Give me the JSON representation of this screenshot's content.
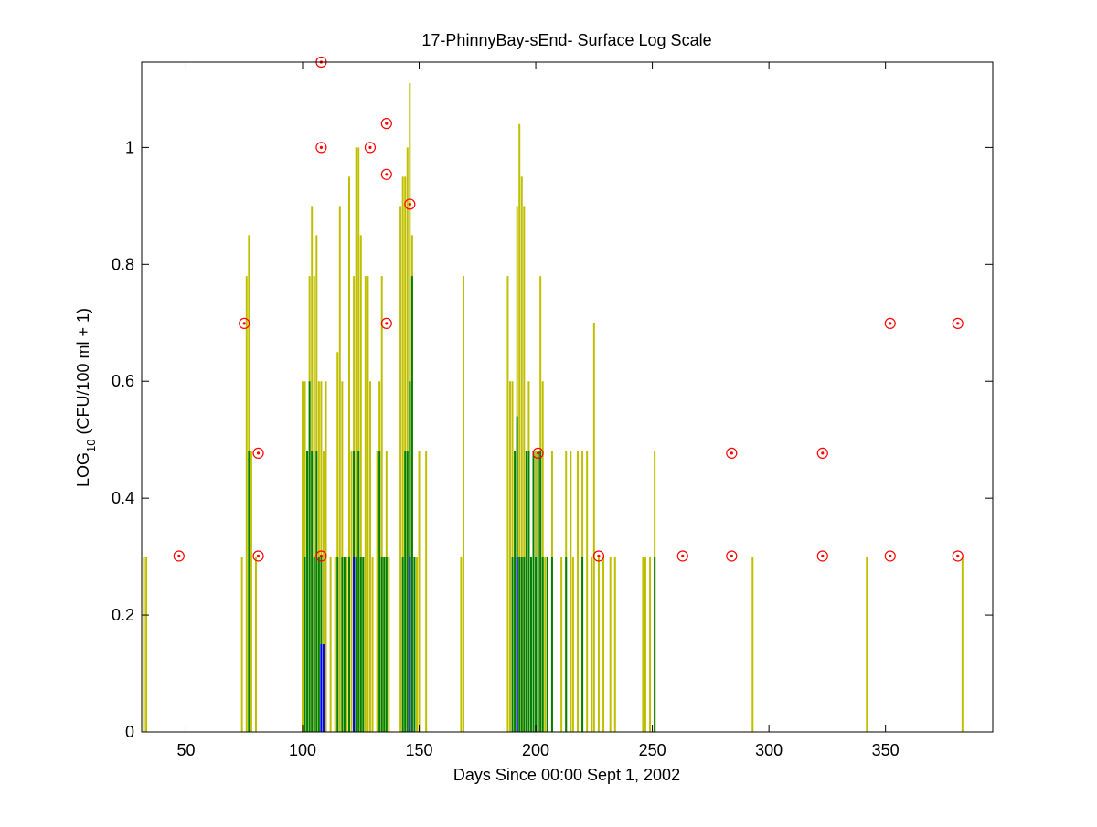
{
  "chart_data": {
    "type": "bar",
    "title": "17-PhinnyBay-sEnd- Surface Log Scale",
    "xlabel": "Days Since 00:00 Sept 1, 2002",
    "ylabel": {
      "base": "LOG",
      "subscript": "10",
      "rest": " (CFU/100 ml + 1)"
    },
    "xlim": [
      31,
      396
    ],
    "ylim": [
      0,
      1.146
    ],
    "xticks": [
      {
        "value": 50,
        "label": "50"
      },
      {
        "value": 100,
        "label": "100"
      },
      {
        "value": 150,
        "label": "150"
      },
      {
        "value": 200,
        "label": "200"
      },
      {
        "value": 250,
        "label": "250"
      },
      {
        "value": 300,
        "label": "300"
      },
      {
        "value": 350,
        "label": "350"
      }
    ],
    "yticks": [
      {
        "value": 0,
        "label": "0"
      },
      {
        "value": 0.2,
        "label": "0.2"
      },
      {
        "value": 0.4,
        "label": "0.4"
      },
      {
        "value": 0.6,
        "label": "0.6"
      },
      {
        "value": 0.8,
        "label": "0.8"
      },
      {
        "value": 1,
        "label": "1"
      }
    ],
    "grid": false,
    "colors": {
      "yellow_series": "#bfbf00",
      "green_series": "#007f00",
      "blue_series": "#0000ff",
      "point_marker": "#ff0000"
    },
    "series": [
      {
        "style": "stem",
        "color": "#bfbf00",
        "x": [
          32,
          33,
          74,
          76,
          77,
          78,
          80,
          100,
          101,
          102,
          103,
          104,
          105,
          106,
          107,
          108,
          109,
          110,
          112,
          114,
          115,
          116,
          117,
          118,
          119,
          120,
          121,
          122,
          123,
          124,
          125,
          126,
          127,
          128,
          129,
          130,
          132,
          133,
          134,
          135,
          136,
          137,
          142,
          143,
          144,
          145,
          146,
          147,
          148,
          149,
          150,
          153,
          168,
          169,
          188,
          189,
          190,
          191,
          192,
          193,
          194,
          195,
          196,
          197,
          198,
          199,
          200,
          201,
          202,
          203,
          204,
          205,
          207,
          211,
          213,
          215,
          216,
          218,
          220,
          222,
          224,
          225,
          227,
          229,
          232,
          234,
          246,
          247,
          249,
          251,
          293,
          342,
          383
        ],
        "y": [
          0.3,
          0.3,
          0.3,
          0.78,
          0.85,
          0.48,
          0.3,
          0.6,
          0.6,
          0.48,
          0.78,
          0.9,
          0.78,
          0.85,
          0.6,
          0.6,
          0.48,
          0.6,
          0.3,
          0.3,
          0.65,
          0.9,
          0.6,
          0.3,
          0.3,
          0.95,
          0.48,
          0.78,
          1.0,
          1.0,
          0.85,
          0.3,
          0.78,
          0.78,
          0.6,
          0.3,
          0.48,
          0.6,
          0.78,
          0.3,
          0.48,
          0.3,
          0.9,
          0.95,
          0.95,
          1.0,
          1.11,
          0.85,
          0.3,
          0.3,
          0.48,
          0.48,
          0.3,
          0.78,
          0.78,
          0.6,
          0.6,
          0.3,
          0.9,
          1.04,
          0.95,
          0.9,
          0.48,
          0.6,
          0.3,
          0.48,
          0.48,
          0.48,
          0.78,
          0.6,
          0.3,
          0.3,
          0.48,
          0.3,
          0.48,
          0.48,
          0.3,
          0.48,
          0.48,
          0.48,
          0.3,
          0.7,
          0.3,
          0.3,
          0.3,
          0.3,
          0.3,
          0.3,
          0.3,
          0.48,
          0.3,
          0.3,
          0.3
        ]
      },
      {
        "style": "stem",
        "color": "#007f00",
        "x": [
          77,
          101,
          102,
          103,
          104,
          105,
          106,
          107,
          108,
          115,
          117,
          118,
          120,
          122,
          123,
          124,
          125,
          126,
          133,
          134,
          135,
          136,
          143,
          144,
          145,
          146,
          147,
          148,
          190,
          191,
          192,
          193,
          194,
          195,
          196,
          197,
          198,
          199,
          200,
          201,
          202,
          203,
          205,
          207,
          213,
          220,
          251
        ],
        "y": [
          0.48,
          0.3,
          0.48,
          0.6,
          0.48,
          0.3,
          0.48,
          0.3,
          0.3,
          0.3,
          0.3,
          0.3,
          0.3,
          0.48,
          0.3,
          0.48,
          0.3,
          0.3,
          0.48,
          0.3,
          0.3,
          0.3,
          0.3,
          0.48,
          0.48,
          0.6,
          0.78,
          0.3,
          0.3,
          0.48,
          0.54,
          0.3,
          0.3,
          0.3,
          0.48,
          0.48,
          0.3,
          0.48,
          0.3,
          0.48,
          0.48,
          0.3,
          0.3,
          0.3,
          0.3,
          0.3,
          0.3
        ]
      },
      {
        "style": "stem",
        "color": "#0000ff",
        "x": [
          108,
          109,
          122,
          146,
          192
        ],
        "y": [
          0.15,
          0.15,
          0.3,
          0.3,
          0.3
        ]
      },
      {
        "style": "markers",
        "color": "#ff0000",
        "points": [
          {
            "x": 47,
            "y": 0.301
          },
          {
            "x": 75,
            "y": 0.699
          },
          {
            "x": 81,
            "y": 0.477
          },
          {
            "x": 81,
            "y": 0.301
          },
          {
            "x": 108,
            "y": 1.146
          },
          {
            "x": 108,
            "y": 1.0
          },
          {
            "x": 108,
            "y": 0.301
          },
          {
            "x": 129,
            "y": 1.0
          },
          {
            "x": 136,
            "y": 1.041
          },
          {
            "x": 136,
            "y": 0.954
          },
          {
            "x": 136,
            "y": 0.699
          },
          {
            "x": 146,
            "y": 0.903
          },
          {
            "x": 201,
            "y": 0.477
          },
          {
            "x": 227,
            "y": 0.301
          },
          {
            "x": 263,
            "y": 0.301
          },
          {
            "x": 284,
            "y": 0.477
          },
          {
            "x": 284,
            "y": 0.301
          },
          {
            "x": 323,
            "y": 0.477
          },
          {
            "x": 323,
            "y": 0.301
          },
          {
            "x": 352,
            "y": 0.699
          },
          {
            "x": 352,
            "y": 0.301
          },
          {
            "x": 381,
            "y": 0.699
          },
          {
            "x": 381,
            "y": 0.301
          }
        ]
      }
    ]
  }
}
